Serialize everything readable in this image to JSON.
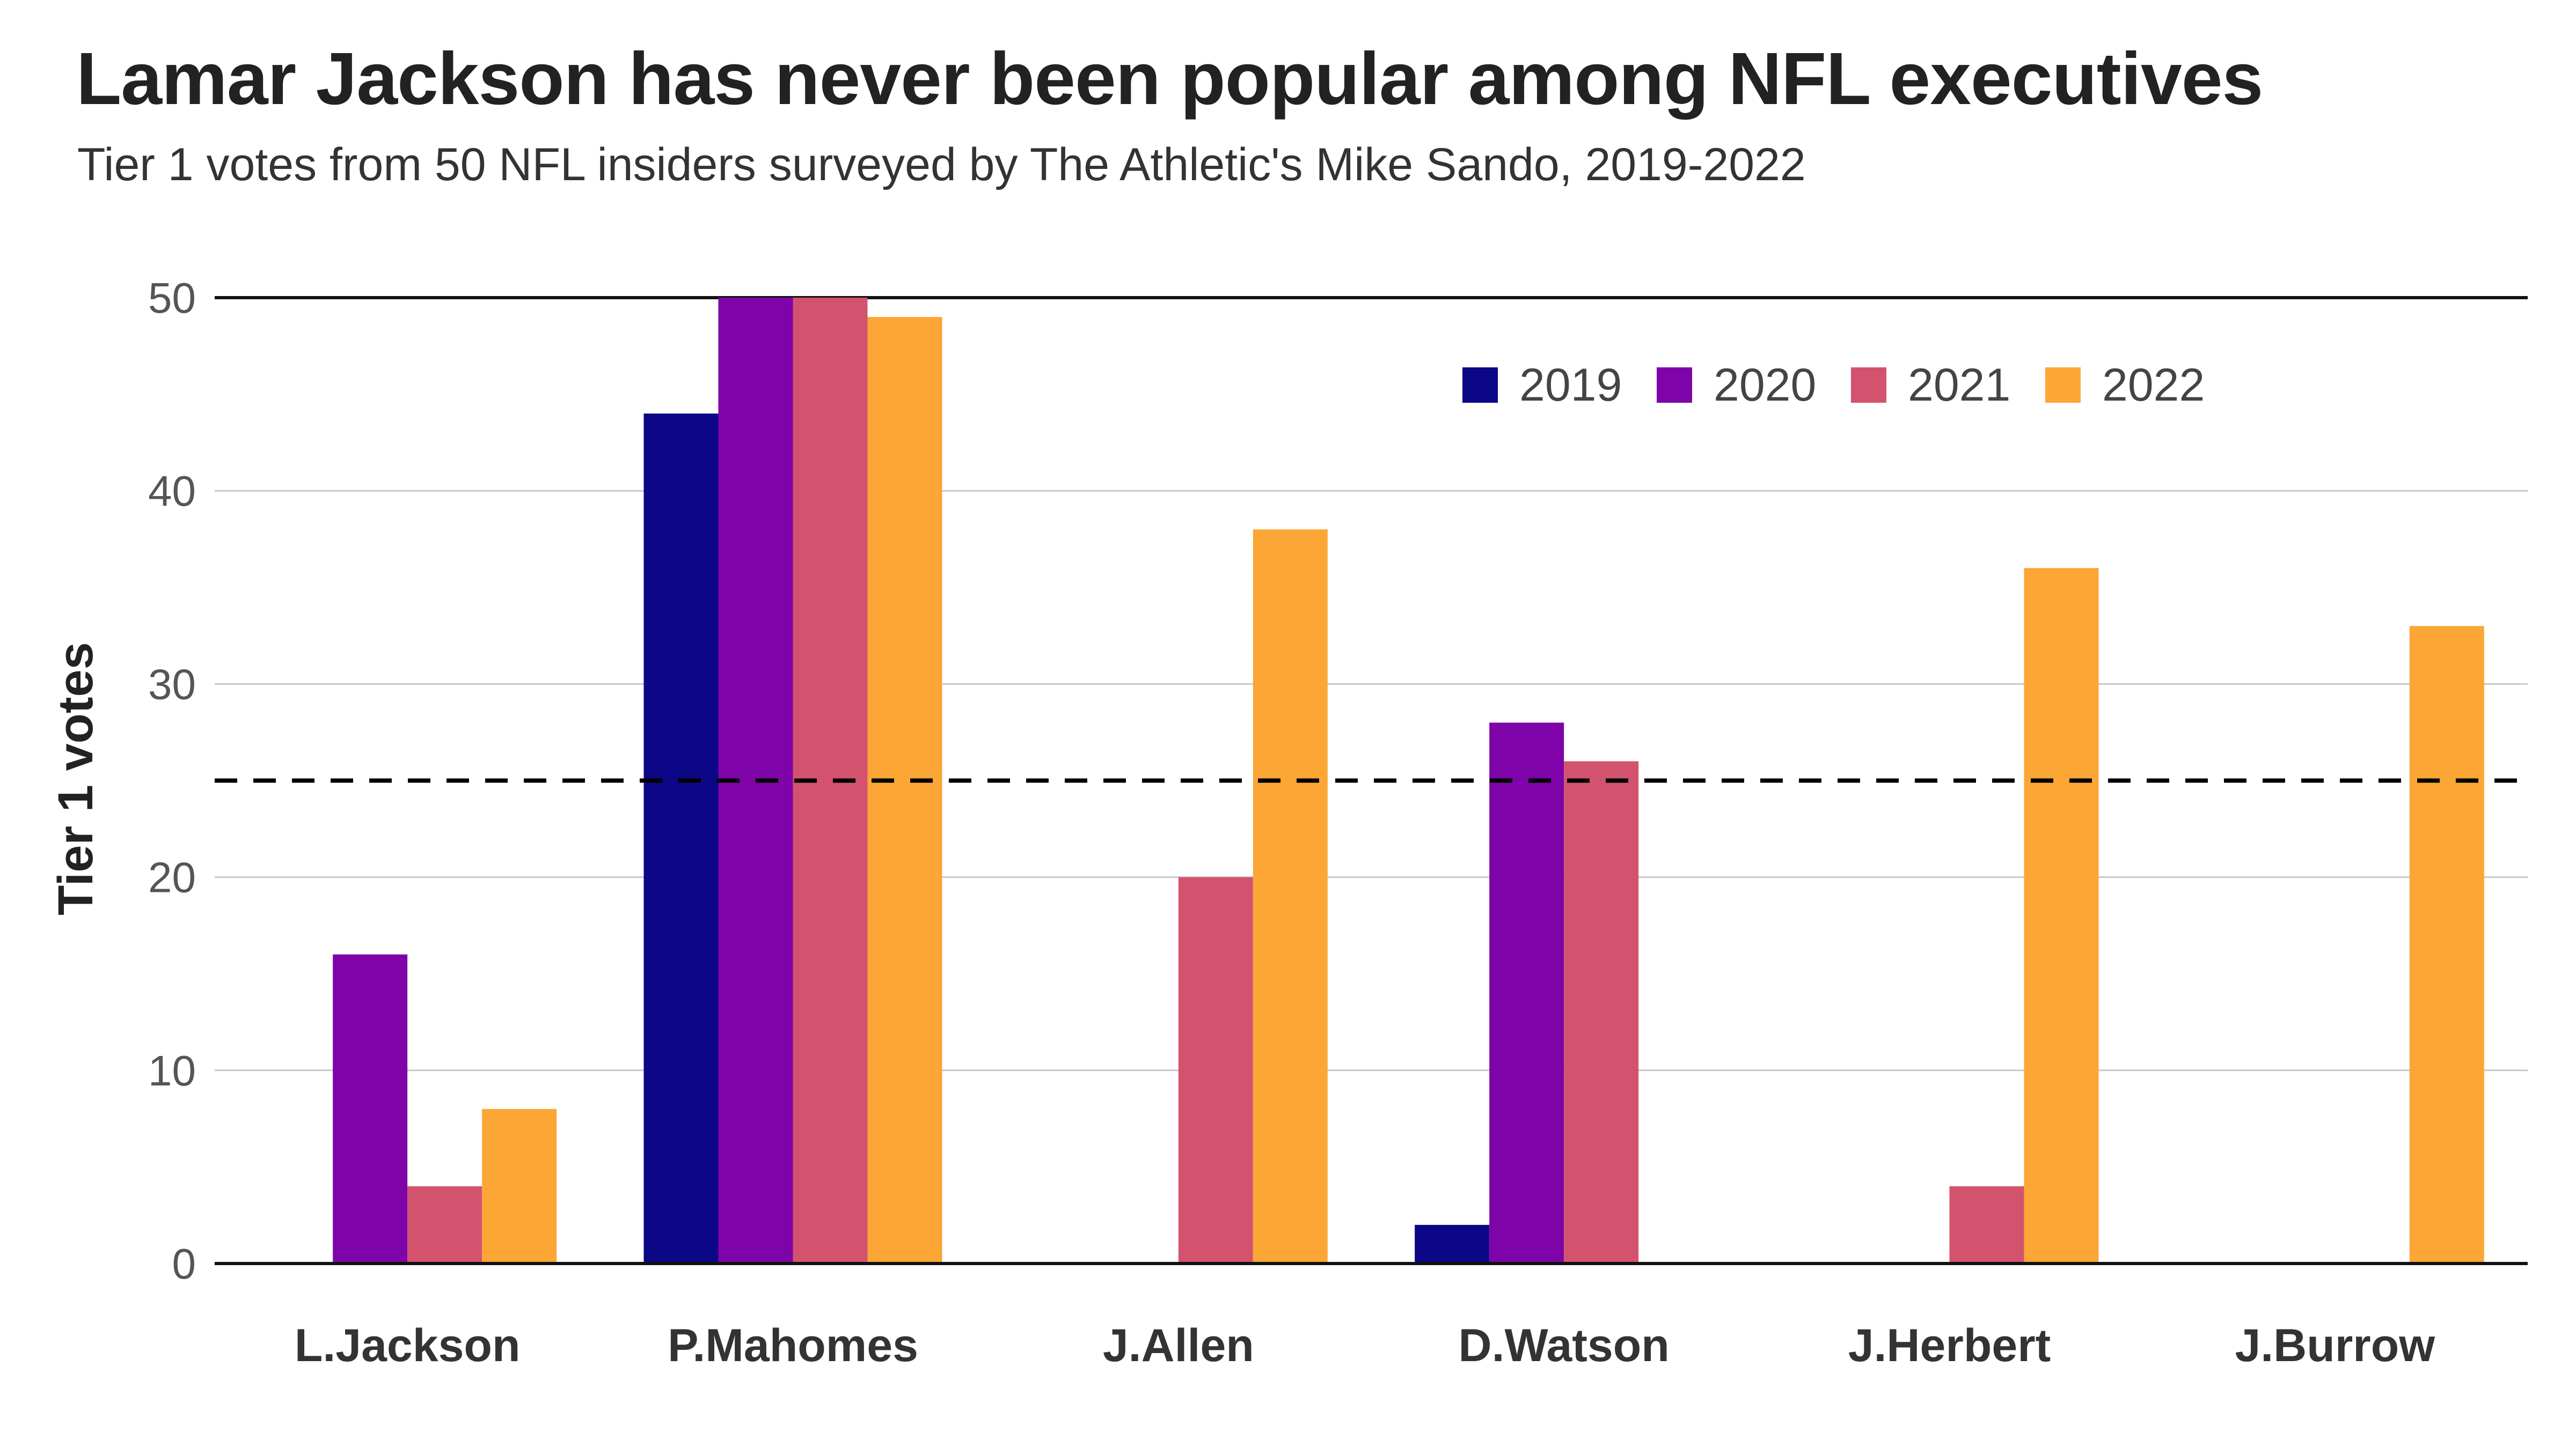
{
  "chart_data": {
    "type": "bar",
    "title": "Lamar Jackson has never been popular among NFL executives",
    "subtitle": "Tier 1 votes from 50 NFL insiders surveyed by The Athletic's Mike Sando, 2019-2022",
    "xlabel": "",
    "ylabel": "Tier 1 votes",
    "ylim": [
      0,
      50
    ],
    "yticks": [
      "0",
      "10",
      "20",
      "30",
      "40",
      "50"
    ],
    "categories": [
      "L.Jackson",
      "P.Mahomes",
      "J.Allen",
      "D.Watson",
      "J.Herbert",
      "J.Burrow"
    ],
    "series": [
      {
        "name": "2019",
        "color": "#0c0786",
        "values": [
          0,
          44,
          0,
          2,
          0,
          0
        ]
      },
      {
        "name": "2020",
        "color": "#7e03a8",
        "values": [
          16,
          50,
          0,
          28,
          0,
          0
        ]
      },
      {
        "name": "2021",
        "color": "#d3536f",
        "values": [
          4,
          50,
          20,
          26,
          4,
          0
        ]
      },
      {
        "name": "2022",
        "color": "#fca636",
        "values": [
          8,
          49,
          38,
          0,
          36,
          33
        ]
      }
    ],
    "reference_line": {
      "value": 25,
      "style": "dashed",
      "color": "#000000"
    },
    "grid": true,
    "legend": "top-right"
  }
}
